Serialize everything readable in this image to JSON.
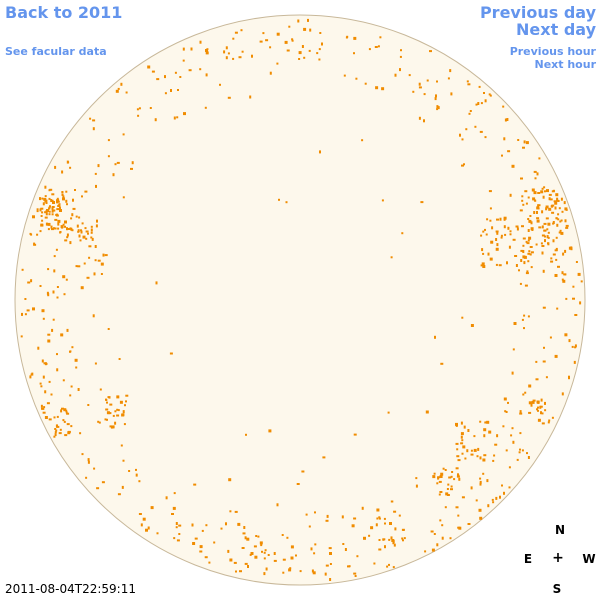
{
  "nav": {
    "back_label": "Back to 2011",
    "facular_label": "See facular data",
    "prev_day_label": "Previous day",
    "next_day_label": "Next day",
    "prev_hour_label": "Previous hour",
    "next_hour_label": "Next hour"
  },
  "timestamp": "2011-08-04T22:59:11",
  "compass": {
    "north": "N",
    "south": "S",
    "east": "E",
    "west": "W",
    "center": "+"
  },
  "colors": {
    "link": "#6495ed",
    "disk_fill": "#fdf8ec",
    "disk_edge": "#c8b89a",
    "facula": "#f08c00"
  }
}
